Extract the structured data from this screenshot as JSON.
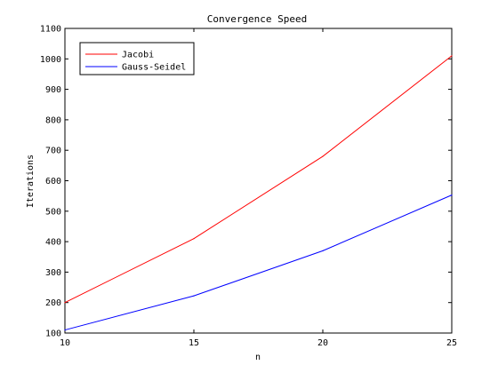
{
  "chart_data": {
    "type": "line",
    "title": "Convergence Speed",
    "xlabel": "n",
    "ylabel": "Iterations",
    "xlim": [
      10,
      25
    ],
    "ylim": [
      100,
      1100
    ],
    "xticks": [
      10,
      15,
      20,
      25
    ],
    "yticks": [
      100,
      200,
      300,
      400,
      500,
      600,
      700,
      800,
      900,
      1000,
      1100
    ],
    "grid": false,
    "legend_position": "top-left",
    "x": [
      10,
      15,
      20,
      25
    ],
    "series": [
      {
        "name": "Jacobi",
        "color": "#ff0000",
        "values": [
          200,
          410,
          680,
          1010
        ]
      },
      {
        "name": "Gauss-Seidel",
        "color": "#0000ff",
        "values": [
          110,
          222,
          370,
          553
        ]
      }
    ]
  }
}
